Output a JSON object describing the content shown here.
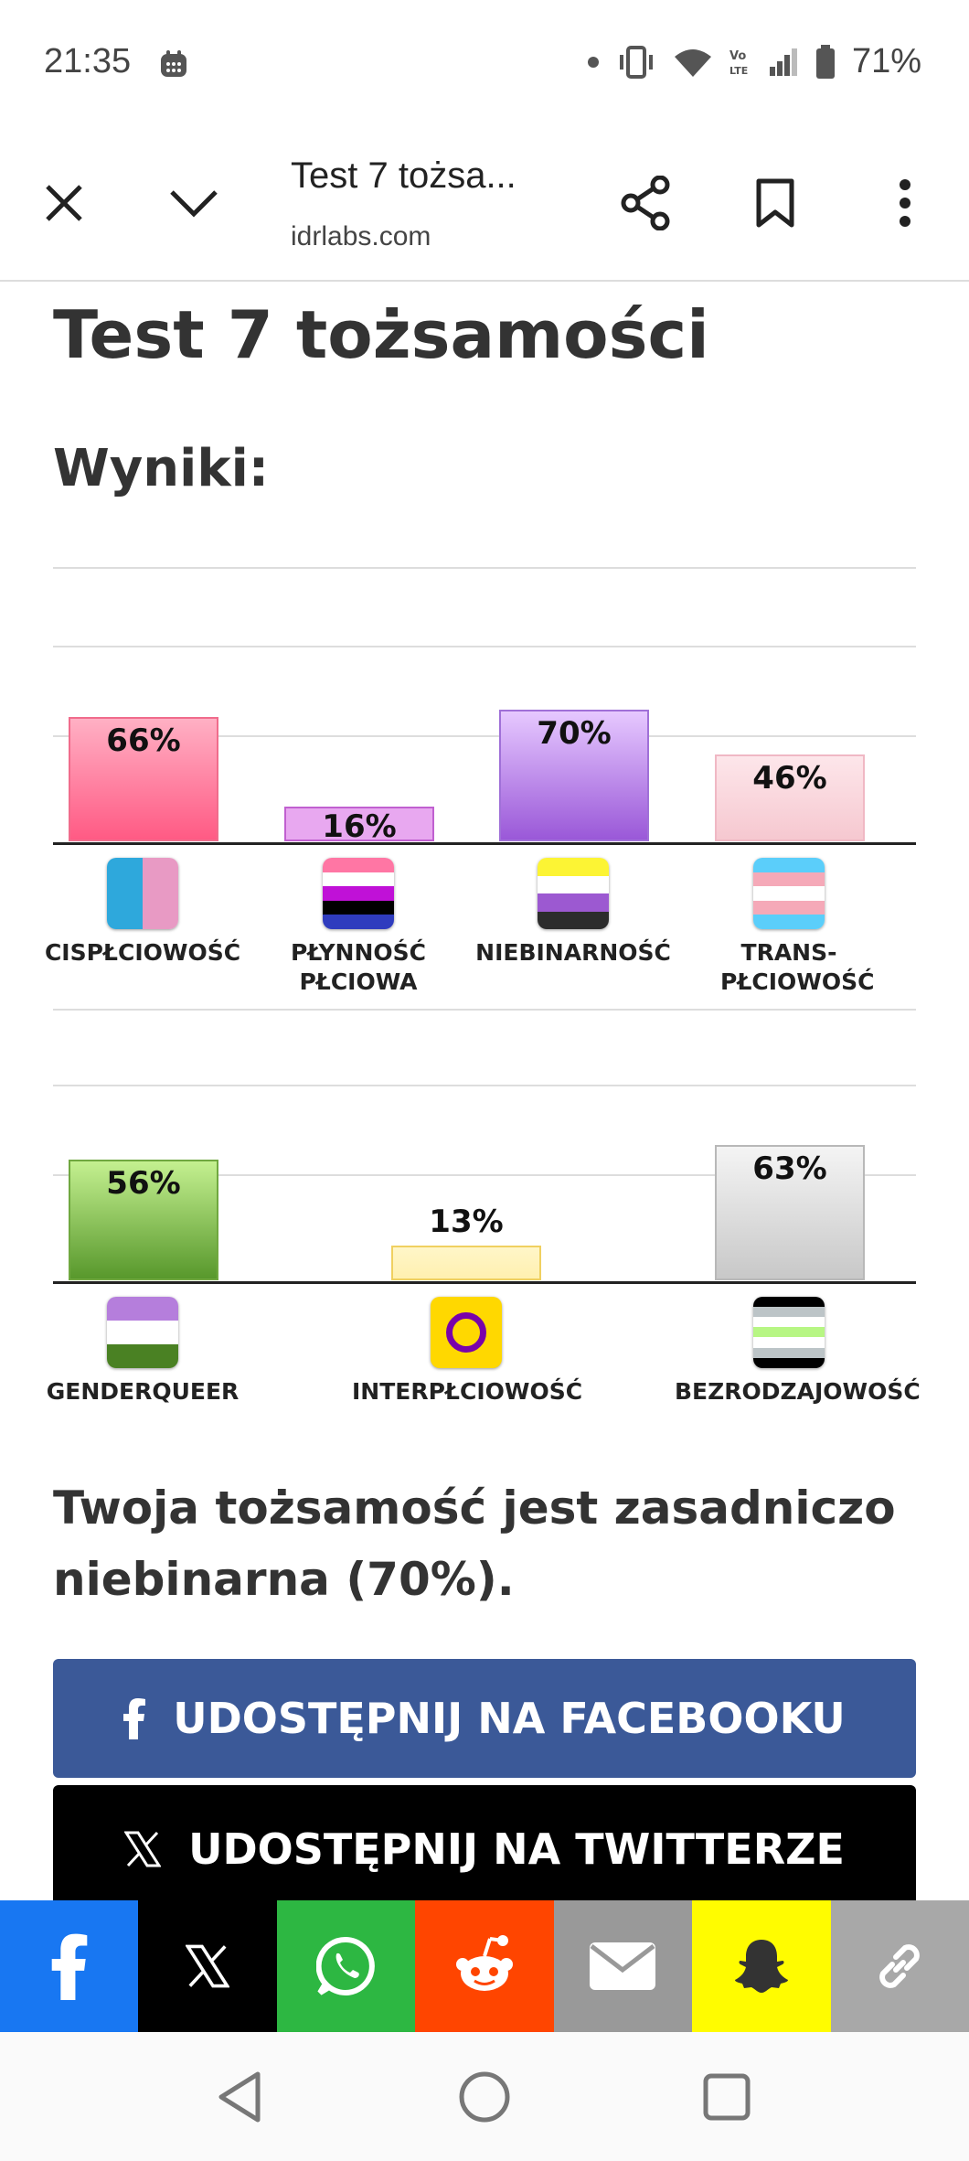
{
  "status": {
    "time": "21:35",
    "battery": "71%"
  },
  "browser": {
    "title": "Test 7 tożsa...",
    "url": "idrlabs.com"
  },
  "page": {
    "title": "Test 7 tożsamości",
    "results_heading": "Wyniki:",
    "summary": "Twoja tożsamość jest zasadniczo niebinarna (70%)."
  },
  "chart_data": [
    {
      "type": "bar",
      "categories": [
        "CISPŁCIOWOŚĆ",
        "PŁYNNOŚĆ PŁCIOWA",
        "NIEBINARNOŚĆ",
        "TRANS-PŁCIOWOŚĆ"
      ],
      "values": [
        66,
        16,
        70,
        46
      ],
      "labels": [
        "66%",
        "16%",
        "70%",
        "46%"
      ],
      "ylim": [
        0,
        100
      ],
      "colors": [
        [
          "#ffb0c4",
          "#ff5a84"
        ],
        [
          "#e8a8f0",
          "#e8a8f0"
        ],
        [
          "#e6c8ff",
          "#9a58d8"
        ],
        [
          "#fde6ea",
          "#f6c8d0"
        ]
      ],
      "border_colors": [
        "#f06c8c",
        "#c060d0",
        "#a070d8",
        "#f0b8c4"
      ]
    },
    {
      "type": "bar",
      "categories": [
        "GENDERQUEER",
        "INTERPŁCIOWOŚĆ",
        "BEZRODZAJOWOŚĆ"
      ],
      "values": [
        56,
        13,
        63
      ],
      "labels": [
        "56%",
        "13%",
        "63%"
      ],
      "ylim": [
        0,
        100
      ],
      "colors": [
        [
          "#c4f090",
          "#58982c"
        ],
        [
          "#fff6c8",
          "#fff0b0"
        ],
        [
          "#f4f4f4",
          "#c8c8c8"
        ]
      ],
      "border_colors": [
        "#70a840",
        "#f0d060",
        "#b8b8b8"
      ]
    }
  ],
  "buttons": {
    "facebook_share": "UDOSTĘPNIJ NA FACEBOOKU",
    "twitter_share": "UDOSTĘPNIJ NA TWITTERZE"
  },
  "share_bar": {
    "items": [
      "facebook-icon",
      "x-icon",
      "whatsapp-icon",
      "reddit-icon",
      "email-icon",
      "snapchat-icon",
      "link-icon"
    ],
    "colors": [
      "#1877f2",
      "#000000",
      "#2db742",
      "#ff4500",
      "#999999",
      "#fffc00",
      "#a8a8a8"
    ]
  }
}
